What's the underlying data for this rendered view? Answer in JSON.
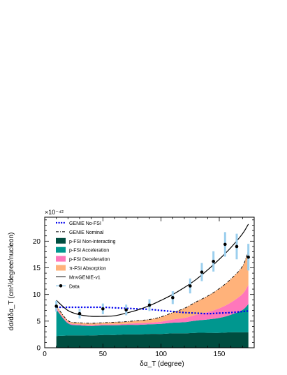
{
  "chart_data": {
    "type": "area",
    "title": "",
    "xlabel": "δα_T (degree)",
    "ylabel": "dσ/dδα_T (cm²/degree/nucleon)",
    "y_exponent": "×10⁻⁴²",
    "xlim": [
      0,
      180
    ],
    "ylim": [
      0,
      24.5
    ],
    "x_major_ticks": [
      0,
      50,
      100,
      150
    ],
    "y_major_ticks": [
      0,
      5,
      10,
      15,
      20
    ],
    "grid": false,
    "legend_position": "top-left",
    "x": [
      10,
      20,
      30,
      40,
      50,
      60,
      70,
      80,
      90,
      100,
      110,
      120,
      130,
      140,
      150,
      160,
      170,
      175
    ],
    "stacked_series": [
      {
        "name": "p-FSI Non-interacting",
        "color": "#004d40",
        "values": [
          2.2,
          2.3,
          2.3,
          2.3,
          2.4,
          2.4,
          2.5,
          2.5,
          2.6,
          2.6,
          2.7,
          2.7,
          2.8,
          2.8,
          2.8,
          2.9,
          2.9,
          2.9
        ]
      },
      {
        "name": "p-FSI Acceleration",
        "color": "#00978f",
        "values": [
          5.0,
          2.3,
          1.9,
          1.8,
          1.8,
          1.8,
          1.8,
          1.8,
          1.8,
          1.9,
          2.0,
          2.1,
          2.3,
          2.5,
          2.8,
          3.3,
          4.2,
          5.3
        ]
      },
      {
        "name": "p-FSI Deceleration",
        "color": "#ff77bb",
        "values": [
          0.3,
          0.2,
          0.2,
          0.2,
          0.2,
          0.2,
          0.2,
          0.3,
          0.3,
          0.4,
          0.6,
          0.8,
          1.1,
          1.4,
          1.8,
          2.3,
          3.0,
          3.6
        ]
      },
      {
        "name": "π-FSI Absorption",
        "color": "#ffb27a",
        "values": [
          0.4,
          0.3,
          0.3,
          0.3,
          0.3,
          0.4,
          0.4,
          0.5,
          0.6,
          0.9,
          1.3,
          1.8,
          2.4,
          3.0,
          3.7,
          4.4,
          5.2,
          6.4
        ]
      }
    ],
    "lines": [
      {
        "name": "GENIE No-FSI",
        "color": "#0000ee",
        "style": "dotted-thick",
        "values": [
          7.6,
          7.6,
          7.6,
          7.6,
          7.6,
          7.5,
          7.4,
          7.3,
          7.2,
          7.0,
          6.8,
          6.6,
          6.5,
          6.4,
          6.5,
          6.6,
          6.8,
          6.9
        ]
      },
      {
        "name": "GENIE Nominal",
        "color": "#000000",
        "style": "dash-dot",
        "values": [
          7.9,
          5.1,
          4.7,
          4.6,
          4.7,
          4.8,
          4.9,
          5.1,
          5.3,
          5.8,
          6.6,
          7.4,
          8.6,
          9.7,
          11.1,
          12.9,
          15.3,
          18.2
        ]
      },
      {
        "name": "MnvGENIE-v1",
        "color": "#000000",
        "style": "solid",
        "values": [
          8.9,
          7.0,
          6.2,
          5.9,
          5.9,
          6.0,
          6.5,
          7.1,
          7.9,
          8.9,
          10.0,
          11.3,
          12.8,
          14.6,
          16.6,
          18.8,
          21.4,
          23.2
        ]
      }
    ],
    "data_points": {
      "name": "Data",
      "x": [
        10,
        30,
        50,
        70,
        90,
        110,
        125,
        135,
        145,
        155,
        165,
        175
      ],
      "y": [
        7.8,
        6.4,
        7.3,
        7.1,
        8.0,
        9.4,
        11.6,
        14.2,
        16.2,
        19.4,
        19.0,
        17.0
      ],
      "err": [
        1.0,
        0.9,
        1.0,
        1.0,
        1.1,
        1.2,
        1.4,
        1.7,
        1.9,
        2.3,
        2.4,
        2.5
      ],
      "marker_color": "#000000",
      "error_color": "#9ccfee"
    },
    "legend": [
      {
        "label": "GENIE No-FSI",
        "kind": "line-dotted",
        "color": "#0000ee"
      },
      {
        "label": "GENIE Nominal",
        "kind": "line-dashdot",
        "color": "#000000"
      },
      {
        "label": "p-FSI Non-interacting",
        "kind": "box",
        "color": "#004d40"
      },
      {
        "label": "p-FSI Acceleration",
        "kind": "box",
        "color": "#00978f"
      },
      {
        "label": "p-FSI Deceleration",
        "kind": "box",
        "color": "#ff77bb"
      },
      {
        "label": "π-FSI Absorption",
        "kind": "box",
        "color": "#ffb27a"
      },
      {
        "label": "MnvGENIE-v1",
        "kind": "line-solid",
        "color": "#000000"
      },
      {
        "label": "Data",
        "kind": "point",
        "color": "#000000"
      }
    ]
  }
}
